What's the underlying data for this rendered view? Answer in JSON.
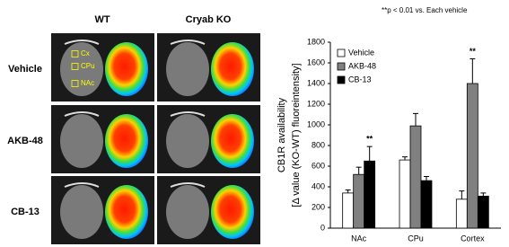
{
  "figure": {
    "columns": [
      "WT",
      "Cryab KO"
    ],
    "rows": [
      "Vehicle",
      "AKB-48",
      "CB-13"
    ],
    "regions": [
      "Cx",
      "CPu",
      "NAc"
    ]
  },
  "chart_data": {
    "type": "bar",
    "note": "**p < 0.01 vs. Each vehicle",
    "ylabel": [
      "CB1R availability",
      "[Δ value (KO-WT) fluoreintensity]"
    ],
    "categories": [
      "NAc",
      "CPu",
      "Cortex"
    ],
    "series": [
      {
        "name": "Vehicle",
        "color": "#ffffff",
        "values": [
          340,
          660,
          280
        ],
        "errors": [
          30,
          30,
          80
        ]
      },
      {
        "name": "AKB-48",
        "color": "#808080",
        "values": [
          520,
          990,
          1400
        ],
        "errors": [
          70,
          120,
          240
        ]
      },
      {
        "name": "CB-13",
        "color": "#000000",
        "values": [
          650,
          460,
          310
        ],
        "errors": [
          140,
          40,
          30
        ]
      }
    ],
    "ylim": [
      0,
      1800
    ],
    "yticks": [
      0,
      200,
      400,
      600,
      800,
      1000,
      1200,
      1400,
      1600,
      1800
    ],
    "legend": "upper left",
    "significance": [
      {
        "text": "**",
        "category": "NAc",
        "series": "CB-13"
      },
      {
        "text": "**",
        "category": "Cortex",
        "series": "AKB-48"
      }
    ]
  }
}
